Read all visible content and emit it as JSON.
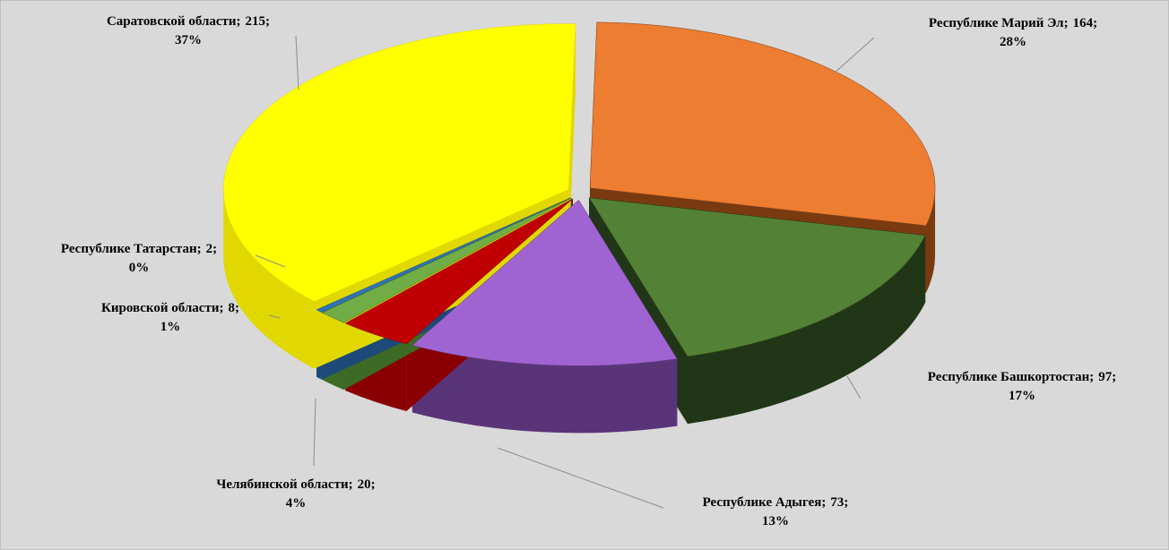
{
  "chart_data": {
    "type": "pie",
    "three_d": true,
    "exploded": true,
    "categories": [
      "Республике Марий Эл",
      "Республике Башкортостан",
      "Республике Адыгея",
      "Челябинской области",
      "Кировской области",
      "Республике Татарстан",
      "Саратовской области"
    ],
    "values": [
      164,
      97,
      73,
      20,
      8,
      2,
      215
    ],
    "percent_labels": [
      "28%",
      "17%",
      "13%",
      "4%",
      "1%",
      "0%",
      "37%"
    ],
    "label_separator": ";",
    "colors": [
      "#ed7d31",
      "#538135",
      "#a064d2",
      "#c00000",
      "#70ad47",
      "#2e75b6",
      "#ffff00"
    ],
    "wall_colors": [
      "#7a3a10",
      "#203616",
      "#5a3478",
      "#8a0000",
      "#3d6a25",
      "#1d4a78",
      "#e0d800"
    ]
  }
}
